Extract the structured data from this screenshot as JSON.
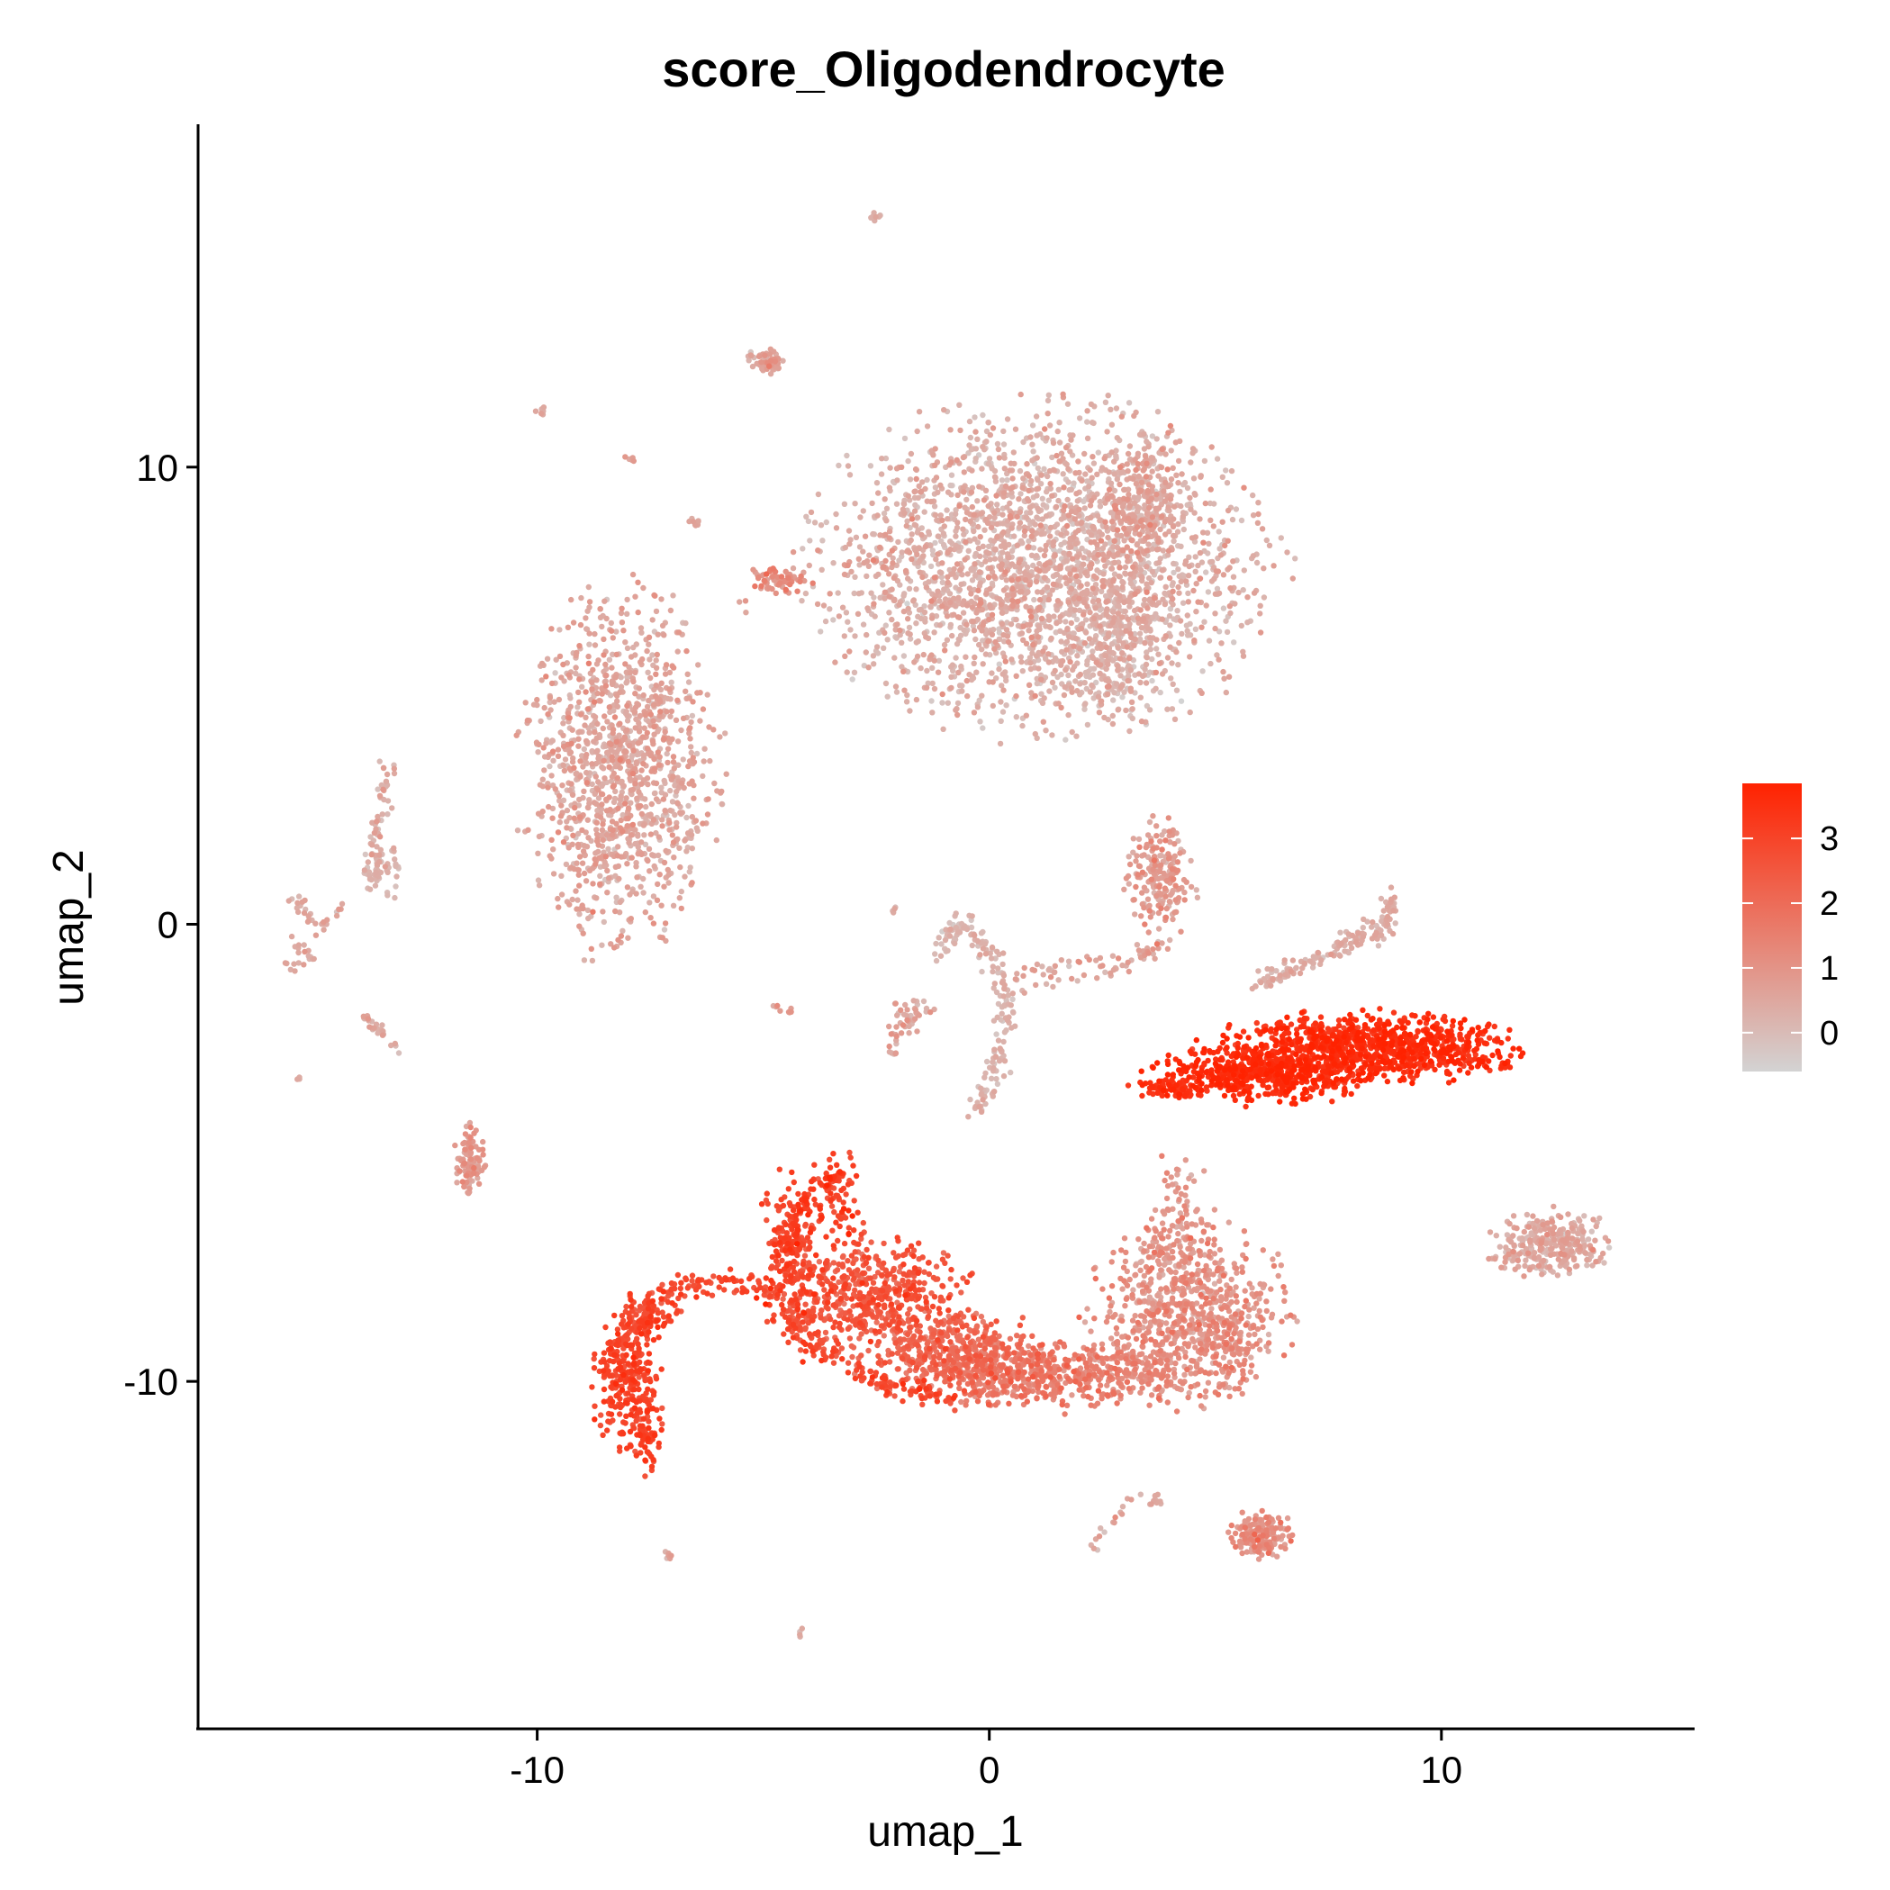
{
  "chart_data": {
    "type": "scatter",
    "title": "score_Oligodendrocyte",
    "xlabel": "umap_1",
    "ylabel": "umap_2",
    "xlim": [
      -17.5,
      15.6
    ],
    "ylim": [
      -17.6,
      17.5
    ],
    "x_ticks": [
      {
        "value": -10,
        "label": "-10"
      },
      {
        "value": 0,
        "label": "0"
      },
      {
        "value": 10,
        "label": "10"
      }
    ],
    "y_ticks": [
      {
        "value": 10,
        "label": "10"
      },
      {
        "value": 0,
        "label": "0"
      },
      {
        "value": -10,
        "label": "-10"
      }
    ],
    "grid": false,
    "color_scale": {
      "low_color": "#d3d3d3",
      "high_color": "#ff2200",
      "min": -0.6,
      "max": 3.85,
      "ticks": [
        {
          "value": 0,
          "label": "0"
        },
        {
          "value": 1,
          "label": "1"
        },
        {
          "value": 2,
          "label": "2"
        },
        {
          "value": 3,
          "label": "3"
        }
      ],
      "legend_position": "right"
    },
    "clusters": [
      {
        "cx": 1.2,
        "cy": 7.8,
        "sx": 2.3,
        "sy": 1.6,
        "n": 2600,
        "score": 0.3,
        "score_sd": 0.3
      },
      {
        "cx": 3.4,
        "cy": 9.2,
        "sx": 0.4,
        "sy": 0.7,
        "n": 250,
        "score": 0.5,
        "score_sd": 0.3
      },
      {
        "cx": 2.8,
        "cy": 5.8,
        "sx": 0.5,
        "sy": 0.6,
        "n": 150,
        "score": 0.2,
        "score_sd": 0.25
      },
      {
        "cx": -8.2,
        "cy": 3.4,
        "sx": 1.0,
        "sy": 1.8,
        "n": 1200,
        "score": 0.5,
        "score_sd": 0.3
      },
      {
        "cx": 8.4,
        "cy": -2.7,
        "sx": 1.6,
        "sy": 0.35,
        "n": 900,
        "score": 3.5,
        "score_sd": 0.25
      },
      {
        "cx": 6.0,
        "cy": -3.3,
        "sx": 1.1,
        "sy": 0.3,
        "n": 500,
        "score": 3.6,
        "score_sd": 0.2
      },
      {
        "cx": 4.0,
        "cy": -3.6,
        "sx": 0.4,
        "sy": 0.1,
        "n": 60,
        "score": 3.4,
        "score_sd": 0.2
      },
      {
        "cx": -4.3,
        "cy": -7.2,
        "sx": 0.4,
        "sy": 0.9,
        "n": 220,
        "score": 2.9,
        "score_sd": 0.3
      },
      {
        "cx": -3.3,
        "cy": -6.0,
        "sx": 0.25,
        "sy": 0.5,
        "n": 60,
        "score": 3.0,
        "score_sd": 0.3
      },
      {
        "cx": -2.6,
        "cy": -8.2,
        "sx": 1.0,
        "sy": 0.6,
        "n": 500,
        "score": 2.5,
        "score_sd": 0.35
      },
      {
        "cx": -0.8,
        "cy": -9.4,
        "sx": 1.0,
        "sy": 0.45,
        "n": 450,
        "score": 2.0,
        "score_sd": 0.35
      },
      {
        "cx": 1.0,
        "cy": -9.9,
        "sx": 1.0,
        "sy": 0.35,
        "n": 350,
        "score": 1.6,
        "score_sd": 0.35
      },
      {
        "cx": 3.0,
        "cy": -9.8,
        "sx": 0.7,
        "sy": 0.3,
        "n": 150,
        "score": 1.3,
        "score_sd": 0.3
      },
      {
        "cx": 4.4,
        "cy": -8.5,
        "sx": 1.0,
        "sy": 0.9,
        "n": 700,
        "score": 1.0,
        "score_sd": 0.35
      },
      {
        "cx": 4.2,
        "cy": -6.6,
        "sx": 0.35,
        "sy": 0.7,
        "n": 90,
        "score": 0.8,
        "score_sd": 0.3
      },
      {
        "cx": 5.4,
        "cy": -9.2,
        "sx": 0.3,
        "sy": 0.5,
        "n": 70,
        "score": 1.0,
        "score_sd": 0.3
      },
      {
        "cx": -8.0,
        "cy": -10.0,
        "sx": 0.35,
        "sy": 0.7,
        "n": 250,
        "score": 3.0,
        "score_sd": 0.25
      },
      {
        "cx": -7.6,
        "cy": -11.2,
        "sx": 0.2,
        "sy": 0.4,
        "n": 60,
        "score": 3.0,
        "score_sd": 0.25
      },
      {
        "cx": -7.6,
        "cy": -8.6,
        "sx": 0.35,
        "sy": 0.25,
        "n": 70,
        "score": 2.9,
        "score_sd": 0.25
      },
      {
        "cx": 12.4,
        "cy": -7.0,
        "sx": 0.6,
        "sy": 0.35,
        "n": 300,
        "score": 0.4,
        "score_sd": 0.3
      },
      {
        "cx": 6.0,
        "cy": -13.4,
        "sx": 0.35,
        "sy": 0.25,
        "n": 160,
        "score": 1.0,
        "score_sd": 0.35
      },
      {
        "cx": 3.8,
        "cy": 1.0,
        "sx": 0.35,
        "sy": 0.6,
        "n": 200,
        "score": 0.7,
        "score_sd": 0.35
      },
      {
        "cx": -11.5,
        "cy": -5.2,
        "sx": 0.15,
        "sy": 0.35,
        "n": 100,
        "score": 0.8,
        "score_sd": 0.3
      },
      {
        "cx": -4.9,
        "cy": 12.3,
        "sx": 0.2,
        "sy": 0.15,
        "n": 60,
        "score": 0.6,
        "score_sd": 0.3
      },
      {
        "cx": -4.6,
        "cy": 7.5,
        "sx": 0.3,
        "sy": 0.15,
        "n": 70,
        "score": 1.0,
        "score_sd": 0.35
      },
      {
        "cx": -13.5,
        "cy": 1.2,
        "sx": 0.3,
        "sy": 0.3,
        "n": 40,
        "score": 0.3,
        "score_sd": 0.25
      }
    ],
    "paths": [
      {
        "points": [
          [
            -8.3,
            -9.3
          ],
          [
            -7.6,
            -8.3
          ],
          [
            -6.6,
            -7.9
          ],
          [
            -5.6,
            -7.8
          ],
          [
            -5.0,
            -8.0
          ],
          [
            -4.4,
            -8.6
          ],
          [
            -3.6,
            -9.4
          ],
          [
            -2.2,
            -10.1
          ],
          [
            -0.8,
            -10.4
          ]
        ],
        "n": 260,
        "spread": 0.13,
        "score": 2.8,
        "score_sd": 0.3
      },
      {
        "points": [
          [
            -3.3,
            -5.4
          ],
          [
            -3.9,
            -5.8
          ],
          [
            -4.3,
            -6.4
          ],
          [
            -4.4,
            -7.2
          ]
        ],
        "n": 70,
        "spread": 0.08,
        "score": 3.2,
        "score_sd": 0.25
      },
      {
        "points": [
          [
            -1.2,
            -0.6
          ],
          [
            -0.6,
            0.1
          ],
          [
            0.2,
            -0.9
          ],
          [
            0.4,
            -1.8
          ],
          [
            0.2,
            -3.1
          ],
          [
            -0.3,
            -4.2
          ]
        ],
        "n": 170,
        "spread": 0.12,
        "score": 0.2,
        "score_sd": 0.25
      },
      {
        "points": [
          [
            0.3,
            -1.2
          ],
          [
            1.5,
            -1.0
          ],
          [
            2.6,
            -0.9
          ],
          [
            3.4,
            -0.7
          ],
          [
            3.9,
            -0.5
          ]
        ],
        "n": 70,
        "spread": 0.15,
        "score": 0.5,
        "score_sd": 0.3
      },
      {
        "points": [
          [
            -2.1,
            -1.8
          ],
          [
            -1.4,
            -1.8
          ],
          [
            -2.2,
            -2.5
          ],
          [
            -2.1,
            -3.0
          ]
        ],
        "n": 50,
        "spread": 0.12,
        "score": 0.5,
        "score_sd": 0.3
      },
      {
        "points": [
          [
            6.0,
            -1.3
          ],
          [
            7.5,
            -0.6
          ],
          [
            8.6,
            -0.1
          ],
          [
            9.0,
            0.3
          ],
          [
            8.8,
            0.6
          ]
        ],
        "n": 160,
        "spread": 0.1,
        "score": 0.3,
        "score_sd": 0.25
      },
      {
        "points": [
          [
            -13.3,
            3.6
          ],
          [
            -13.4,
            2.5
          ],
          [
            -13.6,
            1.7
          ],
          [
            -13.6,
            0.9
          ]
        ],
        "n": 60,
        "spread": 0.08,
        "score": 0.3,
        "score_sd": 0.25
      },
      {
        "points": [
          [
            -15.4,
            0.6
          ],
          [
            -14.8,
            -0.1
          ],
          [
            -14.2,
            0.5
          ]
        ],
        "n": 30,
        "spread": 0.08,
        "score": 0.4,
        "score_sd": 0.25
      },
      {
        "points": [
          [
            -15.4,
            -0.3
          ],
          [
            -15.0,
            -0.8
          ],
          [
            -15.6,
            -0.9
          ]
        ],
        "n": 20,
        "spread": 0.08,
        "score": 0.4,
        "score_sd": 0.25
      },
      {
        "points": [
          [
            -13.8,
            -2.0
          ],
          [
            -13.3,
            -2.5
          ],
          [
            -13.1,
            -2.7
          ]
        ],
        "n": 30,
        "spread": 0.06,
        "score": 0.4,
        "score_sd": 0.25
      },
      {
        "points": [
          [
            -3.3,
            7.8
          ],
          [
            -2.6,
            7.9
          ],
          [
            -2.1,
            7.9
          ]
        ],
        "n": 14,
        "spread": 0.06,
        "score": 0.8,
        "score_sd": 0.3
      },
      {
        "points": [
          [
            3.3,
            -12.5
          ],
          [
            2.6,
            -13.2
          ],
          [
            2.2,
            -13.7
          ]
        ],
        "n": 16,
        "spread": 0.06,
        "score": 0.5,
        "score_sd": 0.3
      },
      {
        "points": [
          [
            3.8,
            -12.5
          ],
          [
            3.6,
            -12.7
          ]
        ],
        "n": 10,
        "spread": 0.05,
        "score": 0.4,
        "score_sd": 0.25
      },
      {
        "points": [
          [
            -4.8,
            -1.8
          ],
          [
            -4.4,
            -1.9
          ]
        ],
        "n": 8,
        "spread": 0.04,
        "score": 0.8,
        "score_sd": 0.3
      }
    ],
    "singletons": [
      {
        "x": -2.5,
        "y": 15.5,
        "n": 8,
        "score": 0.3
      },
      {
        "x": -9.9,
        "y": 11.2,
        "n": 8,
        "score": 0.3
      },
      {
        "x": -8.0,
        "y": 10.2,
        "n": 5,
        "score": 0.5
      },
      {
        "x": -6.5,
        "y": 8.8,
        "n": 8,
        "score": 0.4
      },
      {
        "x": -5.2,
        "y": 7.7,
        "n": 3,
        "score": 0.5
      },
      {
        "x": -5.4,
        "y": 7.0,
        "n": 3,
        "score": 0.5
      },
      {
        "x": -1.8,
        "y": 7.7,
        "n": 2,
        "score": 0.3
      },
      {
        "x": -15.3,
        "y": -3.4,
        "n": 3,
        "score": 0.3
      },
      {
        "x": -7.1,
        "y": -13.8,
        "n": 6,
        "score": 0.4
      },
      {
        "x": -4.2,
        "y": -15.5,
        "n": 4,
        "score": 0.4
      },
      {
        "x": -2.1,
        "y": 0.3,
        "n": 4,
        "score": 0.3
      }
    ]
  }
}
